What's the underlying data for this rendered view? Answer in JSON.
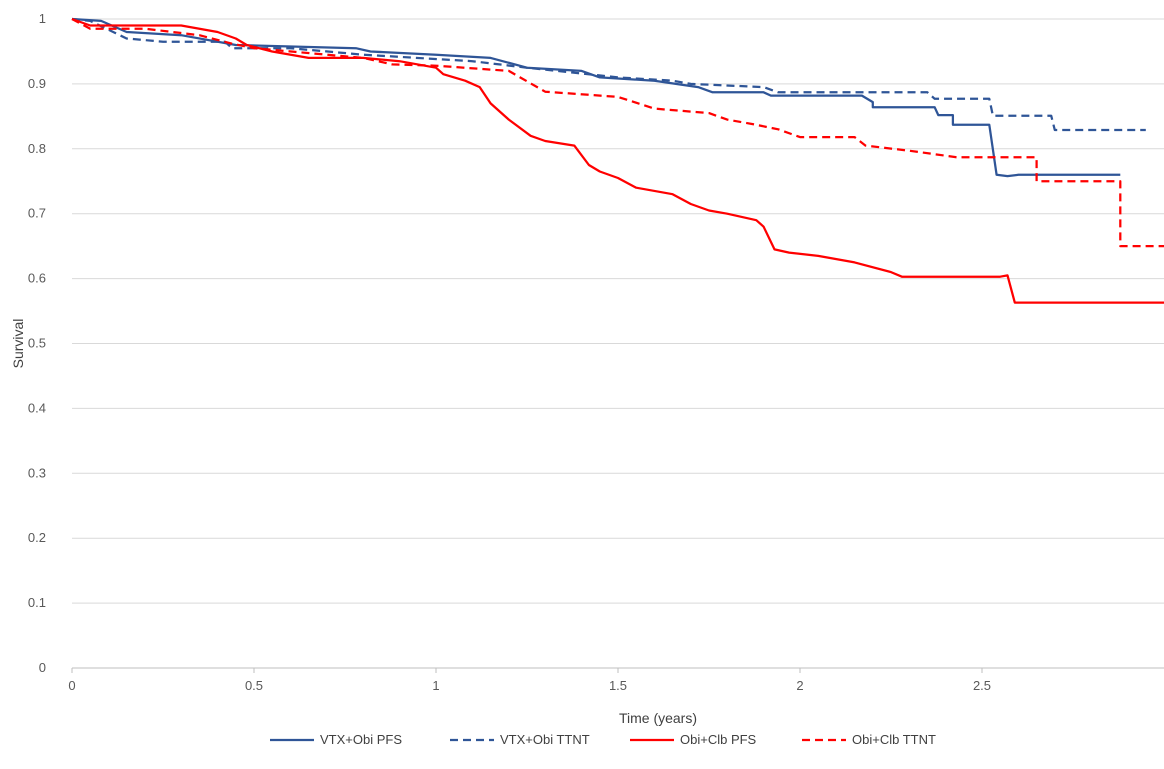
{
  "chart_data": {
    "type": "line",
    "title": "",
    "xlabel": "Time (years)",
    "ylabel": "Survival",
    "xlim": [
      0,
      3
    ],
    "ylim": [
      0,
      1
    ],
    "x_ticks": [
      0,
      0.5,
      1,
      1.5,
      2,
      2.5
    ],
    "x_tick_labels": [
      "0",
      "0.5",
      "1",
      "1.5",
      "2",
      "2.5"
    ],
    "y_ticks": [
      0,
      0.1,
      0.2,
      0.3,
      0.4,
      0.5,
      0.6,
      0.7,
      0.8,
      0.9,
      1
    ],
    "y_tick_labels": [
      "0",
      "0.1",
      "0.2",
      "0.3",
      "0.4",
      "0.5",
      "0.6",
      "0.7",
      "0.8",
      "0.9",
      "1"
    ],
    "grid": "horizontal",
    "legend_position": "bottom",
    "series": [
      {
        "name": "VTX+Obi PFS",
        "color": "#2F5597",
        "dash": "solid",
        "points": [
          [
            0,
            1
          ],
          [
            0.08,
            0.997
          ],
          [
            0.15,
            0.98
          ],
          [
            0.3,
            0.975
          ],
          [
            0.45,
            0.96
          ],
          [
            0.78,
            0.955
          ],
          [
            0.82,
            0.95
          ],
          [
            1.0,
            0.945
          ],
          [
            1.15,
            0.94
          ],
          [
            1.25,
            0.925
          ],
          [
            1.4,
            0.92
          ],
          [
            1.45,
            0.91
          ],
          [
            1.6,
            0.905
          ],
          [
            1.72,
            0.895
          ],
          [
            1.76,
            0.887
          ],
          [
            1.9,
            0.887
          ],
          [
            1.92,
            0.882
          ],
          [
            2.17,
            0.882
          ],
          [
            2.2,
            0.872
          ],
          [
            2.2,
            0.864
          ],
          [
            2.37,
            0.864
          ],
          [
            2.38,
            0.852
          ],
          [
            2.42,
            0.852
          ],
          [
            2.42,
            0.837
          ],
          [
            2.52,
            0.837
          ],
          [
            2.54,
            0.76
          ],
          [
            2.57,
            0.758
          ],
          [
            2.6,
            0.76
          ],
          [
            2.88,
            0.76
          ]
        ]
      },
      {
        "name": "VTX+Obi TTNT",
        "color": "#2F5597",
        "dash": "dashed",
        "points": [
          [
            0,
            1
          ],
          [
            0.05,
            0.997
          ],
          [
            0.15,
            0.97
          ],
          [
            0.25,
            0.965
          ],
          [
            0.42,
            0.965
          ],
          [
            0.44,
            0.955
          ],
          [
            0.6,
            0.955
          ],
          [
            0.8,
            0.945
          ],
          [
            1.1,
            0.935
          ],
          [
            1.25,
            0.925
          ],
          [
            1.5,
            0.91
          ],
          [
            1.65,
            0.905
          ],
          [
            1.7,
            0.9
          ],
          [
            1.9,
            0.895
          ],
          [
            1.94,
            0.887
          ],
          [
            2.35,
            0.887
          ],
          [
            2.37,
            0.877
          ],
          [
            2.52,
            0.877
          ],
          [
            2.53,
            0.851
          ],
          [
            2.69,
            0.851
          ],
          [
            2.7,
            0.829
          ],
          [
            2.95,
            0.829
          ]
        ]
      },
      {
        "name": "Obi+Clb PFS",
        "color": "#FF0000",
        "dash": "solid",
        "points": [
          [
            0,
            1
          ],
          [
            0.05,
            0.99
          ],
          [
            0.3,
            0.99
          ],
          [
            0.4,
            0.98
          ],
          [
            0.45,
            0.97
          ],
          [
            0.48,
            0.96
          ],
          [
            0.55,
            0.95
          ],
          [
            0.65,
            0.94
          ],
          [
            0.8,
            0.94
          ],
          [
            0.9,
            0.935
          ],
          [
            1.0,
            0.925
          ],
          [
            1.02,
            0.915
          ],
          [
            1.08,
            0.905
          ],
          [
            1.12,
            0.895
          ],
          [
            1.15,
            0.87
          ],
          [
            1.2,
            0.845
          ],
          [
            1.26,
            0.82
          ],
          [
            1.3,
            0.812
          ],
          [
            1.38,
            0.805
          ],
          [
            1.42,
            0.775
          ],
          [
            1.45,
            0.765
          ],
          [
            1.5,
            0.755
          ],
          [
            1.55,
            0.74
          ],
          [
            1.65,
            0.73
          ],
          [
            1.7,
            0.715
          ],
          [
            1.75,
            0.705
          ],
          [
            1.8,
            0.7
          ],
          [
            1.88,
            0.69
          ],
          [
            1.9,
            0.68
          ],
          [
            1.93,
            0.645
          ],
          [
            1.97,
            0.64
          ],
          [
            2.05,
            0.635
          ],
          [
            2.15,
            0.625
          ],
          [
            2.25,
            0.61
          ],
          [
            2.28,
            0.603
          ],
          [
            2.55,
            0.603
          ],
          [
            2.57,
            0.605
          ],
          [
            2.59,
            0.563
          ],
          [
            3,
            0.563
          ]
        ]
      },
      {
        "name": "Obi+Clb TTNT",
        "color": "#FF0000",
        "dash": "dashed",
        "points": [
          [
            0,
            1
          ],
          [
            0.05,
            0.985
          ],
          [
            0.2,
            0.985
          ],
          [
            0.35,
            0.975
          ],
          [
            0.44,
            0.962
          ],
          [
            0.5,
            0.955
          ],
          [
            0.7,
            0.945
          ],
          [
            0.8,
            0.94
          ],
          [
            0.88,
            0.93
          ],
          [
            1.0,
            0.928
          ],
          [
            1.2,
            0.92
          ],
          [
            1.3,
            0.888
          ],
          [
            1.5,
            0.88
          ],
          [
            1.6,
            0.862
          ],
          [
            1.75,
            0.855
          ],
          [
            1.8,
            0.845
          ],
          [
            1.87,
            0.838
          ],
          [
            1.94,
            0.83
          ],
          [
            2.0,
            0.818
          ],
          [
            2.15,
            0.818
          ],
          [
            2.18,
            0.805
          ],
          [
            2.3,
            0.797
          ],
          [
            2.43,
            0.787
          ],
          [
            2.65,
            0.787
          ],
          [
            2.65,
            0.75
          ],
          [
            2.88,
            0.75
          ],
          [
            2.88,
            0.65
          ],
          [
            3,
            0.65
          ]
        ]
      }
    ]
  }
}
